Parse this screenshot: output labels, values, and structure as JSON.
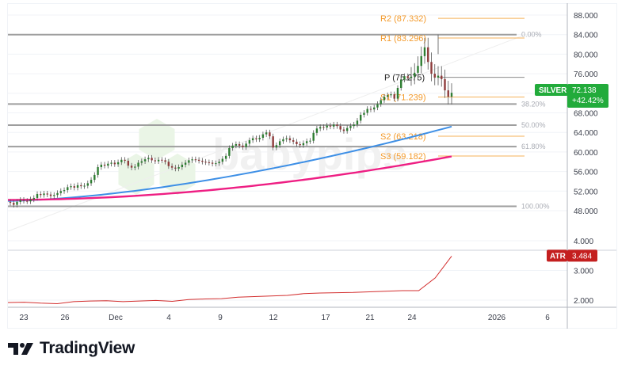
{
  "chart_data": {
    "type": "candlestick",
    "title": "SILVER",
    "symbol": "SILVER",
    "last_price": "72.138",
    "change_pct": "+42.42%",
    "price_axis": {
      "ticks": [
        "88.000",
        "84.000",
        "80.000",
        "76.000",
        "72.000",
        "68.000",
        "64.000",
        "60.000",
        "56.000",
        "52.000",
        "48.000"
      ],
      "range": [
        47,
        90
      ]
    },
    "time_axis": {
      "ticks": [
        "23",
        "26",
        "Dec",
        "4",
        "9",
        "12",
        "17",
        "21",
        "24",
        "2026",
        "6"
      ]
    },
    "pivots": [
      {
        "label": "R2 (87.332)",
        "value": 87.332
      },
      {
        "label": "R1 (83.296)",
        "value": 83.296
      },
      {
        "label": "P (75.275)",
        "value": 75.275
      },
      {
        "label": "S1 (71.239)",
        "value": 71.239
      },
      {
        "label": "S2 (63.218)",
        "value": 63.218
      },
      {
        "label": "S3 (59.182)",
        "value": 59.182
      }
    ],
    "fibonacci": [
      {
        "label": "0.00%",
        "value": 84.0
      },
      {
        "label": "38.20%",
        "value": 69.8
      },
      {
        "label": "50.00%",
        "value": 65.5
      },
      {
        "label": "61.80%",
        "value": 61.1
      },
      {
        "label": "100.00%",
        "value": 48.9
      }
    ],
    "moving_averages": [
      {
        "name": "MA fast",
        "color": "#3d8fe6",
        "start": 50.0,
        "end": 65.2
      },
      {
        "name": "MA slow",
        "color": "#ee1e83",
        "start": 50.2,
        "end": 59.1
      }
    ],
    "closes": [
      49.6,
      49.2,
      49.8,
      50.2,
      50.0,
      49.9,
      50.3,
      50.6,
      51.4,
      51.2,
      51.5,
      51.3,
      51.0,
      51.2,
      51.6,
      52.0,
      52.2,
      52.8,
      53.0,
      52.7,
      53.2,
      53.0,
      53.1,
      53.6,
      54.3,
      55.3,
      56.9,
      57.4,
      57.2,
      57.6,
      57.8,
      57.5,
      57.9,
      58.4,
      58.2,
      57.2,
      56.8,
      57.0,
      57.8,
      58.1,
      58.5,
      58.8,
      58.3,
      58.1,
      58.4,
      58.3,
      58.0,
      57.1,
      56.8,
      56.6,
      56.9,
      57.4,
      57.8,
      58.3,
      58.5,
      58.4,
      58.2,
      58.0,
      57.9,
      57.8,
      57.6,
      57.7,
      58.0,
      58.6,
      59.2,
      60.8,
      61.3,
      61.6,
      61.3,
      61.0,
      61.7,
      62.4,
      62.8,
      62.6,
      62.9,
      63.6,
      64.0,
      63.2,
      60.9,
      61.4,
      62.2,
      62.6,
      62.8,
      62.4,
      62.1,
      61.6,
      61.4,
      61.8,
      62.2,
      62.3,
      63.9,
      64.8,
      65.1,
      65.0,
      65.4,
      65.2,
      65.6,
      65.3,
      64.6,
      64.3,
      64.9,
      65.3,
      65.6,
      66.4,
      67.6,
      68.0,
      68.8,
      68.7,
      69.1,
      69.8,
      70.6,
      71.3,
      71.6,
      71.8,
      70.9,
      73.1,
      74.8,
      75.5,
      75.1,
      75.4,
      76.2,
      77.6,
      79.6,
      81.4,
      78.4,
      76.0,
      75.2,
      75.6,
      74.9,
      72.6,
      71.3,
      72.1
    ],
    "atr": {
      "label": "ATR",
      "value": "3.484",
      "axis_ticks": [
        "4.000",
        "3.000",
        "2.000"
      ],
      "values": [
        1.92,
        1.93,
        1.9,
        1.88,
        1.95,
        1.97,
        1.98,
        1.95,
        1.97,
        1.99,
        1.96,
        2.02,
        2.04,
        2.05,
        2.1,
        2.12,
        2.14,
        2.16,
        2.22,
        2.24,
        2.25,
        2.26,
        2.28,
        2.3,
        2.32,
        2.32,
        2.75,
        3.484
      ]
    }
  },
  "labels": {
    "symbol_tag": "SILVER",
    "price_tag": "72.138",
    "change_tag": "+42.42%",
    "atr_tag": "ATR",
    "atr_value": "3.484",
    "watermark": "babypips",
    "brand": "TradingView"
  },
  "colors": {
    "up": "#2e7d32",
    "down": "#8e3b3b",
    "pivot": "#f5a623",
    "fib": "#9e9e9e",
    "ma_fast": "#3d8fe6",
    "ma_slow": "#ee1e83",
    "atr": "#d32f2f",
    "price_tag_bg": "#22ab3b",
    "atr_tag_bg": "#c41f1f"
  }
}
